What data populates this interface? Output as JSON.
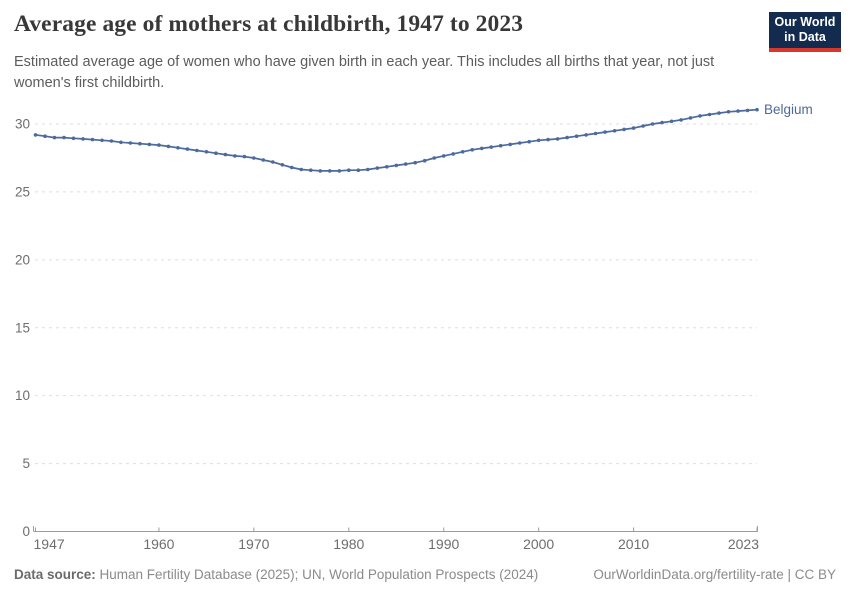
{
  "header": {
    "title": "Average age of mothers at childbirth, 1947 to 2023",
    "subtitle": "Estimated average age of women who have given birth in each year. This includes all births that year, not just women's first childbirth.",
    "logo": {
      "line1": "Our World",
      "line2": "in Data",
      "bg_color": "#122b4e",
      "stripe_color": "#d7382e"
    }
  },
  "chart_data": {
    "type": "line",
    "title": "Average age of mothers at childbirth, 1947 to 2023",
    "xlabel": "",
    "ylabel": "",
    "xlim": [
      1947,
      2023
    ],
    "ylim": [
      0,
      31.5
    ],
    "yticks": [
      0,
      5,
      10,
      15,
      20,
      25,
      30
    ],
    "xticks": [
      1947,
      1960,
      1970,
      1980,
      1990,
      2000,
      2010,
      2023
    ],
    "grid": "horizontal-dashed",
    "legend_position": "end-of-line-label",
    "series": [
      {
        "name": "Belgium",
        "color": "#4c6a9c",
        "x": [
          1947,
          1948,
          1949,
          1950,
          1951,
          1952,
          1953,
          1954,
          1955,
          1956,
          1957,
          1958,
          1959,
          1960,
          1961,
          1962,
          1963,
          1964,
          1965,
          1966,
          1967,
          1968,
          1969,
          1970,
          1971,
          1972,
          1973,
          1974,
          1975,
          1976,
          1977,
          1978,
          1979,
          1980,
          1981,
          1982,
          1983,
          1984,
          1985,
          1986,
          1987,
          1988,
          1989,
          1990,
          1991,
          1992,
          1993,
          1994,
          1995,
          1996,
          1997,
          1998,
          1999,
          2000,
          2001,
          2002,
          2003,
          2004,
          2005,
          2006,
          2007,
          2008,
          2009,
          2010,
          2011,
          2012,
          2013,
          2014,
          2015,
          2016,
          2017,
          2018,
          2019,
          2020,
          2021,
          2022,
          2023
        ],
        "values": [
          29.2,
          29.1,
          29.0,
          29.0,
          28.95,
          28.9,
          28.85,
          28.8,
          28.75,
          28.65,
          28.6,
          28.55,
          28.5,
          28.45,
          28.35,
          28.25,
          28.15,
          28.05,
          27.95,
          27.85,
          27.75,
          27.65,
          27.6,
          27.5,
          27.35,
          27.2,
          27.0,
          26.8,
          26.65,
          26.6,
          26.55,
          26.55,
          26.55,
          26.6,
          26.6,
          26.65,
          26.75,
          26.85,
          26.95,
          27.05,
          27.15,
          27.3,
          27.5,
          27.65,
          27.8,
          27.95,
          28.1,
          28.2,
          28.3,
          28.4,
          28.5,
          28.6,
          28.7,
          28.8,
          28.85,
          28.9,
          29.0,
          29.1,
          29.2,
          29.3,
          29.4,
          29.5,
          29.6,
          29.7,
          29.85,
          30.0,
          30.1,
          30.2,
          30.3,
          30.45,
          30.6,
          30.7,
          30.8,
          30.9,
          30.95,
          31.0,
          31.05
        ]
      }
    ],
    "colors": {
      "gridline": "#dedede",
      "axis": "#9c9c9c",
      "tick_label": "#6e6e6e"
    }
  },
  "footer": {
    "datasource_label": "Data source:",
    "datasource_text": " Human Fertility Database (2025); UN, World Population Prospects (2024)",
    "link_text": "OurWorldinData.org/fertility-rate | CC BY"
  }
}
